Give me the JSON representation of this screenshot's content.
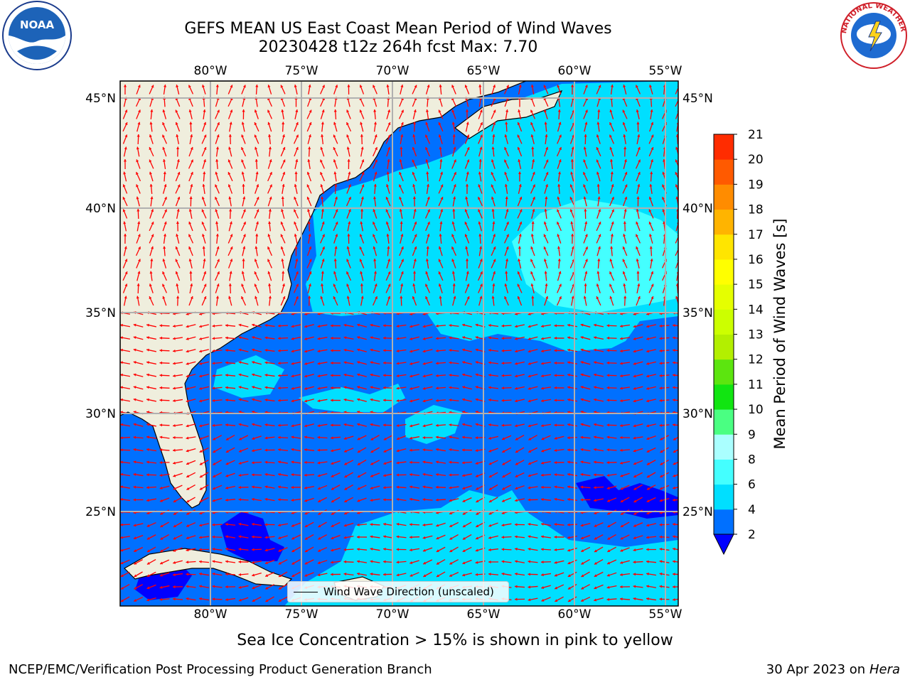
{
  "title": {
    "line1": "GEFS MEAN US East Coast Mean Period of Wind Waves",
    "line2": "20230428 t12z 264h fcst   Max: 7.70"
  },
  "map": {
    "lon_labels": [
      "80°W",
      "75°W",
      "70°W",
      "65°W",
      "60°W",
      "55°W"
    ],
    "lat_labels": [
      "45°N",
      "40°N",
      "35°N",
      "30°N",
      "25°N"
    ],
    "legend_label": "Wind Wave Direction (unscaled)",
    "land_color": "#efeedd",
    "arrow_color": "#ff0000",
    "grid_color": "#b0b0b0"
  },
  "colorbar": {
    "label": "Mean Period of Wind Waves [s]",
    "ticks": [
      "2",
      "4",
      "6",
      "8",
      "9",
      "10",
      "11",
      "12",
      "13",
      "14",
      "15",
      "16",
      "17",
      "18",
      "19",
      "20",
      "21"
    ],
    "colors": [
      "#0070ff",
      "#00dfff",
      "#44ffff",
      "#aaffff",
      "#4aff82",
      "#11e511",
      "#5ce50f",
      "#b3ef00",
      "#ccff00",
      "#e5ff00",
      "#ffff00",
      "#ffe500",
      "#ffb400",
      "#ff8c00",
      "#ff5a00",
      "#ff2c00",
      "#ff0000"
    ],
    "under_color": "#0000ff"
  },
  "note": "Sea Ice Concentration > 15% is shown in pink to yellow",
  "footer": {
    "left": "NCEP/EMC/Verification Post Processing Product Generation Branch",
    "right_date": "30 Apr 2023 on",
    "right_host": "Hera"
  },
  "logos": {
    "noaa_text": "NOAA",
    "nws_text": "NATIONAL WEATHER SERVICE"
  }
}
